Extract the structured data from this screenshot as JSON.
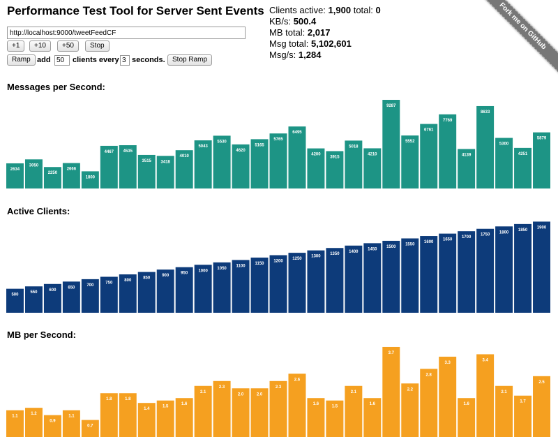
{
  "header": {
    "title": "Performance Test Tool for Server Sent Events",
    "url_value": "http://localhost:9000/tweetFeedCF",
    "buttons": {
      "plus1": "+1",
      "plus10": "+10",
      "plus50": "+50",
      "stop": "Stop"
    },
    "ramp": {
      "ramp_button": "Ramp",
      "add_label": "add",
      "clients_value": "50",
      "clients_every_label": "clients every",
      "seconds_value": "3",
      "seconds_label": "seconds.",
      "stop_ramp_button": "Stop Ramp"
    }
  },
  "stats": {
    "clients_active_label": "Clients active:",
    "clients_active_value": "1,900",
    "total_label": "total:",
    "total_value": "0",
    "kbs_label": "KB/s:",
    "kbs_value": "500.4",
    "mb_total_label": "MB total:",
    "mb_total_value": "2,017",
    "msg_total_label": "Msg total:",
    "msg_total_value": "5,102,601",
    "msgs_label": "Msg/s:",
    "msgs_value": "1,284"
  },
  "ribbon": {
    "text": "Fork me on GitHub"
  },
  "chart_data": [
    {
      "type": "bar",
      "title": "Messages per Second:",
      "color": "#1d9485",
      "ylim": [
        0,
        9800
      ],
      "values": [
        2634,
        3050,
        2250,
        2666,
        1800,
        4467,
        4535,
        3515,
        3418,
        4010,
        5043,
        5530,
        4620,
        5165,
        5765,
        6495,
        4200,
        3915,
        5018,
        4210,
        9287,
        5552,
        6761,
        7769,
        4139,
        8633,
        5300,
        4251,
        5879
      ],
      "labels": [
        "2634",
        "3050",
        "2250",
        "2666",
        "1800",
        "4467",
        "4535",
        "3515",
        "3418",
        "4010",
        "5043",
        "5530",
        "4620",
        "5165",
        "5765",
        "6495",
        "4200",
        "3915",
        "5018",
        "4210",
        "9287",
        "5552",
        "6761",
        "7769",
        "4139",
        "8633",
        "5300",
        "4251",
        "5879"
      ]
    },
    {
      "type": "bar",
      "title": "Active Clients:",
      "color": "#0d3b7a",
      "ylim": [
        0,
        1950
      ],
      "values": [
        500,
        550,
        600,
        650,
        700,
        750,
        800,
        850,
        900,
        950,
        1000,
        1050,
        1100,
        1150,
        1200,
        1250,
        1300,
        1350,
        1400,
        1450,
        1500,
        1550,
        1600,
        1650,
        1700,
        1750,
        1800,
        1850,
        1900
      ],
      "labels": [
        "500",
        "550",
        "600",
        "650",
        "700",
        "750",
        "800",
        "850",
        "900",
        "950",
        "1000",
        "1050",
        "1100",
        "1150",
        "1200",
        "1250",
        "1300",
        "1350",
        "1400",
        "1450",
        "1500",
        "1550",
        "1600",
        "1650",
        "1700",
        "1750",
        "1800",
        "1850",
        "1900"
      ]
    },
    {
      "type": "bar",
      "title": "MB per Second:",
      "color": "#f5a020",
      "ylim": [
        0,
        3.9
      ],
      "values": [
        1.1,
        1.2,
        0.9,
        1.1,
        0.7,
        1.8,
        1.8,
        1.4,
        1.5,
        1.6,
        2.1,
        2.3,
        2.0,
        2.0,
        2.3,
        2.6,
        1.6,
        1.5,
        2.1,
        1.6,
        3.7,
        2.2,
        2.8,
        3.3,
        1.6,
        3.4,
        2.1,
        1.7,
        2.5
      ],
      "labels": [
        "1.1",
        "1.2",
        "0.9",
        "1.1",
        "0.7",
        "1.8",
        "1.8",
        "1.4",
        "1.5",
        "1.6",
        "2.1",
        "2.3",
        "2.0",
        "2.0",
        "2.3",
        "2.6",
        "1.6",
        "1.5",
        "2.1",
        "1.6",
        "3.7",
        "2.2",
        "2.8",
        "3.3",
        "1.6",
        "3.4",
        "2.1",
        "1.7",
        "2.5"
      ]
    }
  ]
}
